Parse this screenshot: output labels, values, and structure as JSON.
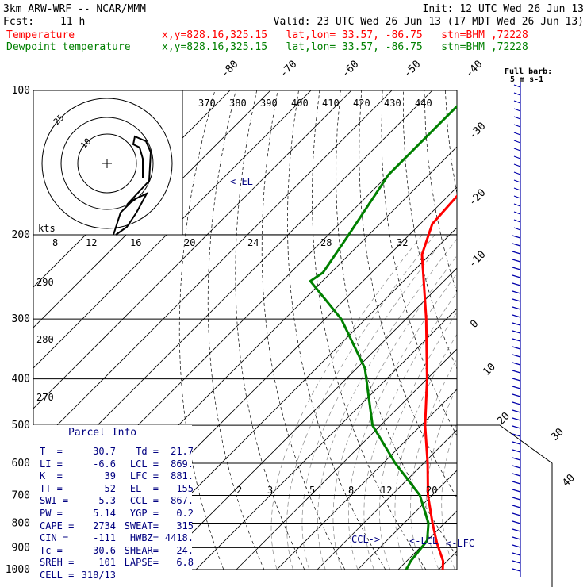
{
  "header": {
    "model": "3km ARW-WRF -- NCAR/MMM",
    "init": "Init: 12 UTC Wed 26 Jun 13",
    "fcst_label": "Fcst:",
    "fcst_value": "11 h",
    "valid": "Valid: 23 UTC Wed 26 Jun 13 (17 MDT Wed 26 Jun 13)",
    "temp_label": "Temperature",
    "temp_loc": "x,y=828.16,325.15   lat,lon= 33.57, -86.75   stn=BHM ,72228",
    "dew_label": "Dewpoint temperature",
    "dew_loc": "x,y=828.16,325.15   lat,lon= 33.57, -86.75   stn=BHM ,72228"
  },
  "colors": {
    "temperature": "#ff0000",
    "dewpoint": "#008000",
    "wind": "#0000aa",
    "parcel_text": "#000080"
  },
  "parcel": {
    "title": "Parcel Info",
    "rows": [
      [
        "T  =",
        "30.7",
        "Td =",
        "21.7"
      ],
      [
        "LI =",
        "-6.6",
        "LCL =",
        "869."
      ],
      [
        "K  =",
        "39",
        "LFC =",
        "881."
      ],
      [
        "TT =",
        "52",
        "EL  =",
        "155"
      ],
      [
        "SWI =",
        "-5.3",
        "CCL =",
        "867."
      ],
      [
        "PW =",
        "5.14",
        "YGP =",
        "0.2"
      ],
      [
        "CAPE =",
        "2734",
        "SWEAT=",
        "315"
      ],
      [
        "CIN =",
        "-111",
        "HWBZ=",
        "4418."
      ],
      [
        "Tc =",
        "30.6",
        "SHEAR=",
        "24."
      ],
      [
        "SREH =",
        "101",
        "LAPSE=",
        "6.8"
      ],
      [
        "CELL =",
        "318/13",
        "",
        ""
      ]
    ]
  },
  "hodograph": {
    "ring_labels": [
      "10",
      "25"
    ],
    "kts_label": "kts"
  },
  "wind_key": {
    "line1": "Full barb:",
    "line2": "5 m s-1"
  },
  "chart_data": {
    "type": "line",
    "title": "",
    "ylabel": "",
    "xlabel": "",
    "y_scale": "log",
    "pressure_ticks": [
      100,
      200,
      300,
      400,
      500,
      600,
      700,
      800,
      900,
      1000
    ],
    "temp_ticks": [
      "-80",
      "-70",
      "-60",
      "-50",
      "-40",
      "-30",
      "-20",
      "-10",
      "0",
      "10",
      "20",
      "30",
      "40"
    ],
    "theta_labels": [
      "370",
      "380",
      "390",
      "400",
      "410",
      "420",
      "430",
      "440"
    ],
    "theta_side_labels": [
      "290",
      "280",
      "270"
    ],
    "mixing_ratio_labels": [
      "2",
      "3",
      "5",
      "8",
      "12",
      "20"
    ],
    "hodo_speed_labels": [
      "8",
      "12",
      "16",
      "20",
      "24",
      "28",
      "32"
    ],
    "level_labels": {
      "el": "<-EL",
      "ccl": "CCL->",
      "lcl": "<-LCL",
      "lfc": "<-LFC"
    },
    "series": [
      {
        "name": "Temperature",
        "points": [
          [
            100,
            -64
          ],
          [
            130,
            -62
          ],
          [
            160,
            -58
          ],
          [
            190,
            -57
          ],
          [
            220,
            -52
          ],
          [
            300,
            -35
          ],
          [
            400,
            -20
          ],
          [
            500,
            -9
          ],
          [
            600,
            1
          ],
          [
            700,
            9
          ],
          [
            800,
            17
          ],
          [
            880,
            23
          ],
          [
            960,
            29
          ],
          [
            1000,
            31
          ]
        ]
      },
      {
        "name": "Dewpoint temperature",
        "points": [
          [
            100,
            -80
          ],
          [
            150,
            -80
          ],
          [
            200,
            -75
          ],
          [
            240,
            -72
          ],
          [
            250,
            -73
          ],
          [
            300,
            -56
          ],
          [
            380,
            -38
          ],
          [
            500,
            -22
          ],
          [
            600,
            -7
          ],
          [
            700,
            7
          ],
          [
            800,
            16
          ],
          [
            870,
            20
          ],
          [
            960,
            21
          ],
          [
            1000,
            22
          ]
        ]
      }
    ]
  }
}
